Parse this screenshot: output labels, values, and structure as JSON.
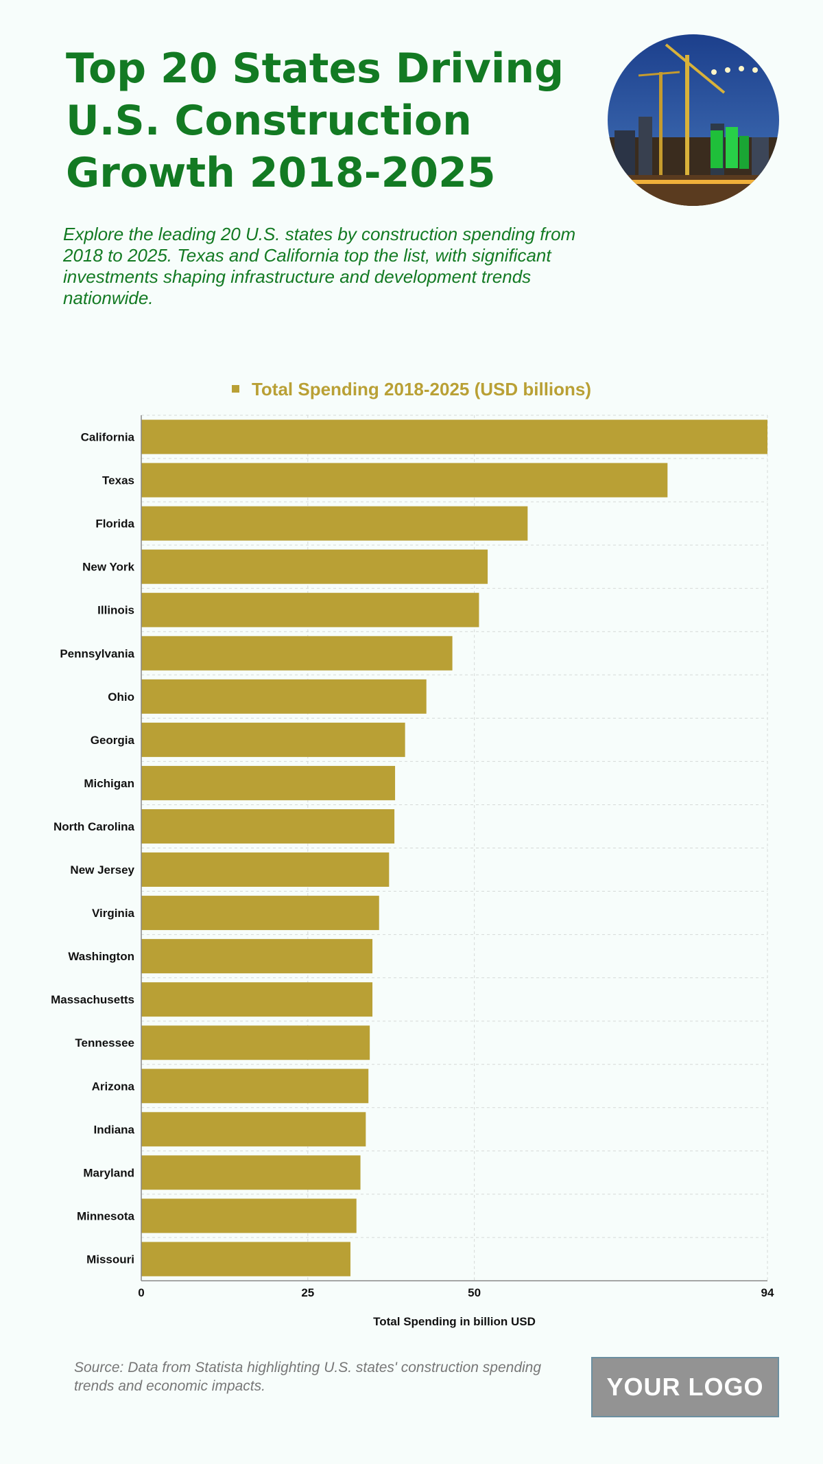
{
  "header": {
    "title": "Top 20 States Driving U.S. Construction Growth 2018-2025",
    "subtitle": "Explore the leading 20 U.S. states by construction spending from 2018 to 2025. Texas and California top the list, with significant investments shaping infrastructure and development trends nationwide."
  },
  "footer": {
    "source": "Source: Data from Statista highlighting U.S. states' construction spending trends and economic impacts.",
    "logo_text": "YOUR LOGO"
  },
  "colors": {
    "title": "#137a23",
    "bar": "#b9a035",
    "background": "#f7fdfb"
  },
  "chart_data": {
    "type": "bar",
    "orientation": "horizontal",
    "legend": [
      "Total Spending 2018-2025 (USD billions)"
    ],
    "legend_placement": "top-center",
    "xlabel": "Total Spending in billion USD",
    "ylabel": "",
    "xlim": [
      0,
      94
    ],
    "xticks": [
      0,
      25,
      50,
      94
    ],
    "grid": true,
    "categories": [
      "California",
      "Texas",
      "Florida",
      "New York",
      "Illinois",
      "Pennsylvania",
      "Ohio",
      "Georgia",
      "Michigan",
      "North Carolina",
      "New Jersey",
      "Virginia",
      "Washington",
      "Massachusetts",
      "Tennessee",
      "Arizona",
      "Indiana",
      "Maryland",
      "Minnesota",
      "Missouri"
    ],
    "series": [
      {
        "name": "Total Spending 2018-2025 (USD billions)",
        "values": [
          94,
          79,
          58,
          52,
          50.7,
          46.7,
          42.8,
          39.6,
          38.1,
          38,
          37.2,
          35.7,
          34.7,
          34.7,
          34.3,
          34.1,
          33.7,
          32.9,
          32.3,
          31.4
        ]
      }
    ]
  }
}
